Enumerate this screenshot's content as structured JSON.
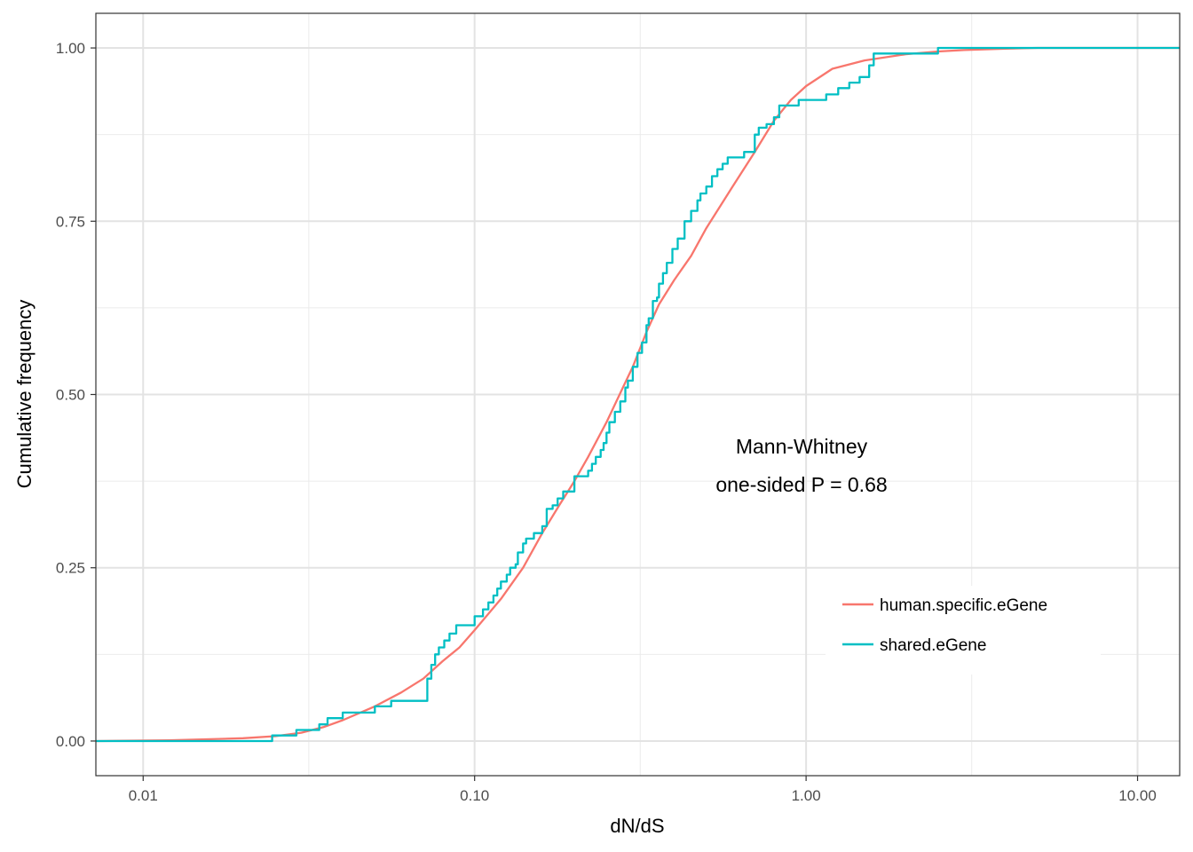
{
  "chart_data": {
    "type": "line",
    "title": "",
    "xlabel": "dN/dS",
    "ylabel": "Cumulative frequency",
    "x_scale": "log10",
    "xlim": [
      0.0072,
      13.4
    ],
    "ylim": [
      -0.05,
      1.05
    ],
    "x_ticks": [
      0.01,
      0.1,
      1,
      10
    ],
    "x_tick_labels": [
      "0.01",
      "0.10",
      "1.00",
      "10.00"
    ],
    "x_minor_ticks": [
      0.0316,
      0.316,
      3.16
    ],
    "y_ticks": [
      0,
      0.25,
      0.5,
      0.75,
      1
    ],
    "y_tick_labels": [
      "0.00",
      "0.25",
      "0.50",
      "0.75",
      "1.00"
    ],
    "y_minor_ticks": [
      0.125,
      0.375,
      0.625,
      0.875
    ],
    "grid": true,
    "legend_position": "bottom-right inside",
    "annotation": [
      "Mann-Whitney",
      "one-sided P = 0.68"
    ],
    "series": [
      {
        "name": "human.specific.eGene",
        "color": "#F8766D",
        "step": false,
        "x": [
          0.0072,
          0.012,
          0.02,
          0.025,
          0.03,
          0.035,
          0.04,
          0.05,
          0.06,
          0.07,
          0.08,
          0.09,
          0.1,
          0.12,
          0.14,
          0.16,
          0.18,
          0.2,
          0.22,
          0.25,
          0.28,
          0.3,
          0.33,
          0.36,
          0.4,
          0.45,
          0.5,
          0.6,
          0.7,
          0.8,
          0.9,
          1.0,
          1.2,
          1.5,
          2.0,
          2.5,
          3.0,
          4.0,
          5.0,
          13.4
        ],
        "y": [
          0,
          0.001,
          0.004,
          0.007,
          0.012,
          0.02,
          0.03,
          0.05,
          0.07,
          0.09,
          0.115,
          0.135,
          0.16,
          0.205,
          0.25,
          0.3,
          0.34,
          0.375,
          0.41,
          0.46,
          0.51,
          0.54,
          0.59,
          0.63,
          0.665,
          0.7,
          0.74,
          0.8,
          0.85,
          0.895,
          0.925,
          0.945,
          0.97,
          0.982,
          0.991,
          0.995,
          0.997,
          0.999,
          1.0,
          1.0
        ]
      },
      {
        "name": "shared.eGene",
        "color": "#00BFC4",
        "step": true,
        "x": [
          0.0072,
          0.0245,
          0.029,
          0.034,
          0.036,
          0.04,
          0.05,
          0.056,
          0.072,
          0.074,
          0.076,
          0.078,
          0.081,
          0.084,
          0.088,
          0.094,
          0.1,
          0.106,
          0.11,
          0.114,
          0.117,
          0.12,
          0.125,
          0.128,
          0.133,
          0.135,
          0.14,
          0.143,
          0.146,
          0.151,
          0.16,
          0.165,
          0.172,
          0.178,
          0.185,
          0.2,
          0.22,
          0.226,
          0.232,
          0.24,
          0.245,
          0.25,
          0.255,
          0.265,
          0.275,
          0.285,
          0.29,
          0.3,
          0.31,
          0.32,
          0.33,
          0.335,
          0.345,
          0.355,
          0.36,
          0.37,
          0.38,
          0.395,
          0.41,
          0.43,
          0.45,
          0.47,
          0.48,
          0.5,
          0.52,
          0.54,
          0.56,
          0.58,
          0.6,
          0.65,
          0.7,
          0.72,
          0.76,
          0.8,
          0.83,
          0.9,
          0.95,
          1.05,
          1.15,
          1.25,
          1.35,
          1.45,
          1.55,
          1.6,
          2.5,
          13.4
        ],
        "y": [
          0,
          0.008,
          0.016,
          0.024,
          0.033,
          0.041,
          0.05,
          0.058,
          0.09,
          0.11,
          0.125,
          0.135,
          0.145,
          0.155,
          0.167,
          0.167,
          0.18,
          0.19,
          0.2,
          0.21,
          0.22,
          0.23,
          0.24,
          0.25,
          0.255,
          0.272,
          0.285,
          0.292,
          0.292,
          0.3,
          0.31,
          0.335,
          0.34,
          0.35,
          0.36,
          0.382,
          0.39,
          0.4,
          0.41,
          0.42,
          0.43,
          0.445,
          0.46,
          0.475,
          0.49,
          0.51,
          0.52,
          0.54,
          0.56,
          0.575,
          0.6,
          0.61,
          0.635,
          0.64,
          0.66,
          0.675,
          0.69,
          0.71,
          0.725,
          0.75,
          0.765,
          0.78,
          0.79,
          0.8,
          0.815,
          0.825,
          0.833,
          0.842,
          0.842,
          0.85,
          0.875,
          0.885,
          0.89,
          0.9,
          0.917,
          0.917,
          0.925,
          0.925,
          0.933,
          0.942,
          0.95,
          0.958,
          0.975,
          0.992,
          1.0,
          1.0
        ]
      }
    ]
  }
}
